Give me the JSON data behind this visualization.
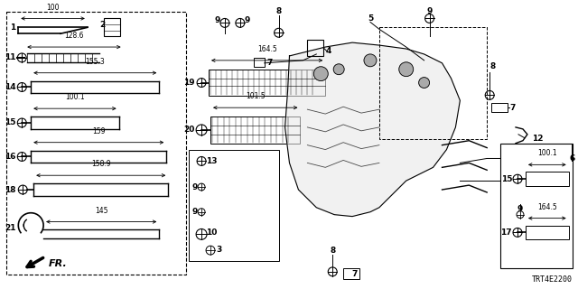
{
  "bg_color": "#ffffff",
  "diagram_code": "TRT4E2200",
  "figsize": [
    6.4,
    3.2
  ],
  "dpi": 100
}
